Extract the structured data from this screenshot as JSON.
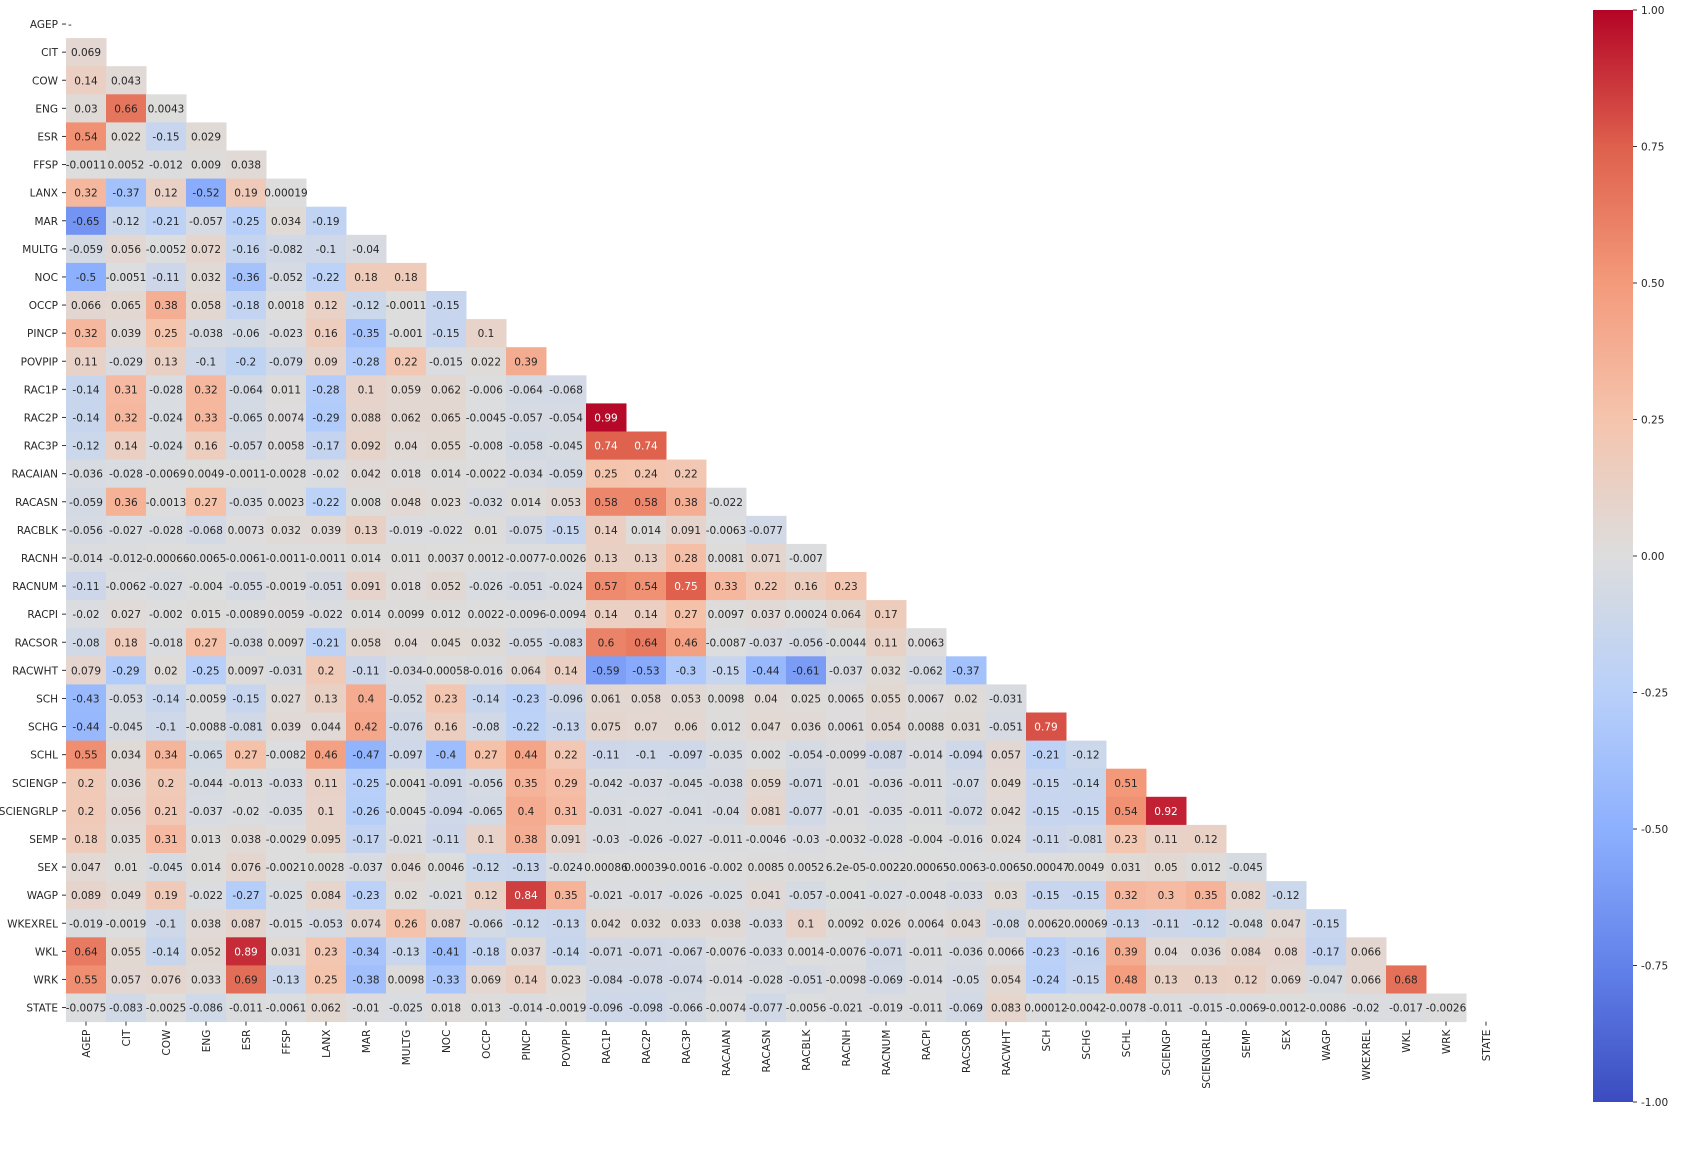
{
  "chart_data": {
    "type": "heatmap",
    "title": "",
    "xlabel": "",
    "ylabel": "",
    "colormap": "coolwarm",
    "mask": "upper-triangle",
    "vmin": -1.0,
    "vmax": 1.0,
    "colorbar_ticks": [
      "1.00",
      "0.75",
      "0.50",
      "0.25",
      "0.00",
      "-0.25",
      "-0.50",
      "-0.75",
      "-1.00"
    ],
    "colorbar_tick_values": [
      1.0,
      0.75,
      0.5,
      0.25,
      0.0,
      -0.25,
      -0.5,
      -0.75,
      -1.0
    ],
    "variables": [
      "AGEP",
      "CIT",
      "COW",
      "ENG",
      "ESR",
      "FFSP",
      "LANX",
      "MAR",
      "MULTG",
      "NOC",
      "OCCP",
      "PINCP",
      "POVPIP",
      "RAC1P",
      "RAC2P",
      "RAC3P",
      "RACAIAN",
      "RACASN",
      "RACBLK",
      "RACNH",
      "RACNUM",
      "RACPI",
      "RACSOR",
      "RACWHT",
      "SCH",
      "SCHG",
      "SCHL",
      "SCIENGP",
      "SCIENGRLP",
      "SEMP",
      "SEX",
      "WAGP",
      "WKEXREL",
      "WKL",
      "WRK",
      "STATE"
    ],
    "diagonal_label": "-",
    "rows": [
      [],
      [
        "0.069"
      ],
      [
        "0.14",
        "0.043"
      ],
      [
        "0.03",
        "0.66",
        "0.0043"
      ],
      [
        "0.54",
        "0.022",
        "-0.15",
        "0.029"
      ],
      [
        "-0.0011",
        "0.0052",
        "-0.012",
        "0.009",
        "0.038"
      ],
      [
        "0.32",
        "-0.37",
        "0.12",
        "-0.52",
        "0.19",
        "0.00019"
      ],
      [
        "-0.65",
        "-0.12",
        "-0.21",
        "-0.057",
        "-0.25",
        "0.034",
        "-0.19"
      ],
      [
        "-0.059",
        "0.056",
        "-0.0052",
        "0.072",
        "-0.16",
        "-0.082",
        "-0.1",
        "-0.04"
      ],
      [
        "-0.5",
        "-0.0051",
        "-0.11",
        "0.032",
        "-0.36",
        "-0.052",
        "-0.22",
        "0.18",
        "0.18"
      ],
      [
        "0.066",
        "0.065",
        "0.38",
        "0.058",
        "-0.18",
        "0.0018",
        "0.12",
        "-0.12",
        "-0.0011",
        "-0.15"
      ],
      [
        "0.32",
        "0.039",
        "0.25",
        "-0.038",
        "-0.06",
        "-0.023",
        "0.16",
        "-0.35",
        "-0.001",
        "-0.15",
        "0.1"
      ],
      [
        "0.11",
        "-0.029",
        "0.13",
        "-0.1",
        "-0.2",
        "-0.079",
        "0.09",
        "-0.28",
        "0.22",
        "-0.015",
        "0.022",
        "0.39"
      ],
      [
        "-0.14",
        "0.31",
        "-0.028",
        "0.32",
        "-0.064",
        "0.011",
        "-0.28",
        "0.1",
        "0.059",
        "0.062",
        "-0.006",
        "-0.064",
        "-0.068"
      ],
      [
        "-0.14",
        "0.32",
        "-0.024",
        "0.33",
        "-0.065",
        "0.0074",
        "-0.29",
        "0.088",
        "0.062",
        "0.065",
        "-0.0045",
        "-0.057",
        "-0.054",
        "0.99"
      ],
      [
        "-0.12",
        "0.14",
        "-0.024",
        "0.16",
        "-0.057",
        "0.0058",
        "-0.17",
        "0.092",
        "0.04",
        "0.055",
        "-0.008",
        "-0.058",
        "-0.045",
        "0.74",
        "0.74"
      ],
      [
        "-0.036",
        "-0.028",
        "-0.0069",
        "0.0049",
        "-0.0011",
        "-0.0028",
        "-0.02",
        "0.042",
        "0.018",
        "0.014",
        "-0.0022",
        "-0.034",
        "-0.059",
        "0.25",
        "0.24",
        "0.22"
      ],
      [
        "-0.059",
        "0.36",
        "-0.0013",
        "0.27",
        "-0.035",
        "0.0023",
        "-0.22",
        "0.008",
        "0.048",
        "0.023",
        "-0.032",
        "0.014",
        "0.053",
        "0.58",
        "0.58",
        "0.38",
        "-0.022"
      ],
      [
        "-0.056",
        "-0.027",
        "-0.028",
        "-0.068",
        "0.0073",
        "0.032",
        "0.039",
        "0.13",
        "-0.019",
        "-0.022",
        "0.01",
        "-0.075",
        "-0.15",
        "0.14",
        "0.014",
        "0.091",
        "-0.0063",
        "-0.077"
      ],
      [
        "-0.014",
        "-0.012",
        "-0.00066",
        "-0.0065",
        "-0.0061",
        "-0.0011",
        "-0.0011",
        "0.014",
        "0.011",
        "0.0037",
        "0.0012",
        "-0.0077",
        "-0.0026",
        "0.13",
        "0.13",
        "0.28",
        "0.0081",
        "0.071",
        "-0.007"
      ],
      [
        "-0.11",
        "-0.0062",
        "-0.027",
        "-0.004",
        "-0.055",
        "-0.0019",
        "-0.051",
        "0.091",
        "0.018",
        "0.052",
        "-0.026",
        "-0.051",
        "-0.024",
        "0.57",
        "0.54",
        "0.75",
        "0.33",
        "0.22",
        "0.16",
        "0.23"
      ],
      [
        "-0.02",
        "0.027",
        "-0.002",
        "0.015",
        "-0.0089",
        "0.0059",
        "-0.022",
        "0.014",
        "0.0099",
        "0.012",
        "0.0022",
        "-0.0096",
        "-0.0094",
        "0.14",
        "0.14",
        "0.27",
        "0.0097",
        "0.037",
        "0.00024",
        "0.064",
        "0.17"
      ],
      [
        "-0.08",
        "0.18",
        "-0.018",
        "0.27",
        "-0.038",
        "0.0097",
        "-0.21",
        "0.058",
        "0.04",
        "0.045",
        "0.032",
        "-0.055",
        "-0.083",
        "0.6",
        "0.64",
        "0.46",
        "-0.0087",
        "-0.037",
        "-0.056",
        "-0.0044",
        "0.11",
        "0.0063"
      ],
      [
        "0.079",
        "-0.29",
        "0.02",
        "-0.25",
        "0.0097",
        "-0.031",
        "0.2",
        "-0.11",
        "-0.034",
        "-0.00058",
        "-0.016",
        "0.064",
        "0.14",
        "-0.59",
        "-0.53",
        "-0.3",
        "-0.15",
        "-0.44",
        "-0.61",
        "-0.037",
        "0.032",
        "-0.062",
        "-0.37"
      ],
      [
        "-0.43",
        "-0.053",
        "-0.14",
        "-0.0059",
        "-0.15",
        "0.027",
        "0.13",
        "0.4",
        "-0.052",
        "0.23",
        "-0.14",
        "-0.23",
        "-0.096",
        "0.061",
        "0.058",
        "0.053",
        "0.0098",
        "0.04",
        "0.025",
        "0.0065",
        "0.055",
        "0.0067",
        "0.02",
        "-0.031"
      ],
      [
        "-0.44",
        "-0.045",
        "-0.1",
        "-0.0088",
        "-0.081",
        "0.039",
        "0.044",
        "0.42",
        "-0.076",
        "0.16",
        "-0.08",
        "-0.22",
        "-0.13",
        "0.075",
        "0.07",
        "0.06",
        "0.012",
        "0.047",
        "0.036",
        "0.0061",
        "0.054",
        "0.0088",
        "0.031",
        "-0.051",
        "0.79"
      ],
      [
        "0.55",
        "0.034",
        "0.34",
        "-0.065",
        "0.27",
        "-0.0082",
        "0.46",
        "-0.47",
        "-0.097",
        "-0.4",
        "0.27",
        "0.44",
        "0.22",
        "-0.11",
        "-0.1",
        "-0.097",
        "-0.035",
        "0.002",
        "-0.054",
        "-0.0099",
        "-0.087",
        "-0.014",
        "-0.094",
        "0.057",
        "-0.21",
        "-0.12"
      ],
      [
        "0.2",
        "0.036",
        "0.2",
        "-0.044",
        "-0.013",
        "-0.033",
        "0.11",
        "-0.25",
        "-0.0041",
        "-0.091",
        "-0.056",
        "0.35",
        "0.29",
        "-0.042",
        "-0.037",
        "-0.045",
        "-0.038",
        "0.059",
        "-0.071",
        "-0.01",
        "-0.036",
        "-0.011",
        "-0.07",
        "0.049",
        "-0.15",
        "-0.14",
        "0.51"
      ],
      [
        "0.2",
        "0.056",
        "0.21",
        "-0.037",
        "-0.02",
        "-0.035",
        "0.1",
        "-0.26",
        "-0.0045",
        "-0.094",
        "-0.065",
        "0.4",
        "0.31",
        "-0.031",
        "-0.027",
        "-0.041",
        "-0.04",
        "0.081",
        "-0.077",
        "-0.01",
        "-0.035",
        "-0.011",
        "-0.072",
        "0.042",
        "-0.15",
        "-0.15",
        "0.54",
        "0.92"
      ],
      [
        "0.18",
        "0.035",
        "0.31",
        "0.013",
        "0.038",
        "-0.0029",
        "0.095",
        "-0.17",
        "-0.021",
        "-0.11",
        "0.1",
        "0.38",
        "0.091",
        "-0.03",
        "-0.026",
        "-0.027",
        "-0.011",
        "-0.0046",
        "-0.03",
        "-0.0032",
        "-0.028",
        "-0.004",
        "-0.016",
        "0.024",
        "-0.11",
        "-0.081",
        "0.23",
        "0.11",
        "0.12"
      ],
      [
        "0.047",
        "0.01",
        "-0.045",
        "0.014",
        "0.076",
        "-0.0021",
        "0.0028",
        "-0.037",
        "0.046",
        "0.0046",
        "-0.12",
        "-0.13",
        "-0.024",
        "0.00086",
        "0.00039",
        "-0.0016",
        "-0.002",
        "0.0085",
        "0.0052",
        "6.2e-05",
        "-0.0022",
        "-0.00065",
        "-0.0063",
        "-0.0065",
        "-0.00047",
        "0.0049",
        "0.031",
        "0.05",
        "0.012",
        "-0.045"
      ],
      [
        "0.089",
        "0.049",
        "0.19",
        "-0.022",
        "-0.27",
        "-0.025",
        "0.084",
        "-0.23",
        "0.02",
        "-0.021",
        "0.12",
        "0.84",
        "0.35",
        "-0.021",
        "-0.017",
        "-0.026",
        "-0.025",
        "0.041",
        "-0.057",
        "-0.0041",
        "-0.027",
        "-0.0048",
        "-0.033",
        "0.03",
        "-0.15",
        "-0.15",
        "0.32",
        "0.3",
        "0.35",
        "0.082",
        "-0.12"
      ],
      [
        "-0.019",
        "-0.0019",
        "-0.1",
        "0.038",
        "0.087",
        "-0.015",
        "-0.053",
        "0.074",
        "0.26",
        "0.087",
        "-0.066",
        "-0.12",
        "-0.13",
        "0.042",
        "0.032",
        "0.033",
        "0.038",
        "-0.033",
        "0.1",
        "0.0092",
        "0.026",
        "0.0064",
        "0.043",
        "-0.08",
        "0.0062",
        "0.00069",
        "-0.13",
        "-0.11",
        "-0.12",
        "-0.048",
        "0.047",
        "-0.15"
      ],
      [
        "0.64",
        "0.055",
        "-0.14",
        "0.052",
        "0.89",
        "0.031",
        "0.23",
        "-0.34",
        "-0.13",
        "-0.41",
        "-0.18",
        "0.037",
        "-0.14",
        "-0.071",
        "-0.071",
        "-0.067",
        "-0.0076",
        "-0.033",
        "0.0014",
        "-0.0076",
        "-0.071",
        "-0.011",
        "-0.036",
        "0.0066",
        "-0.23",
        "-0.16",
        "0.39",
        "0.04",
        "0.036",
        "0.084",
        "0.08",
        "-0.17",
        "0.066"
      ],
      [
        "0.55",
        "0.057",
        "0.076",
        "0.033",
        "0.69",
        "-0.13",
        "0.25",
        "-0.38",
        "0.0098",
        "-0.33",
        "0.069",
        "0.14",
        "0.023",
        "-0.084",
        "-0.078",
        "-0.074",
        "-0.014",
        "-0.028",
        "-0.051",
        "-0.0098",
        "-0.069",
        "-0.014",
        "-0.05",
        "0.054",
        "-0.24",
        "-0.15",
        "0.48",
        "0.13",
        "0.13",
        "0.12",
        "0.069",
        "-0.047",
        "0.066",
        "0.68"
      ],
      [
        "-0.0075",
        "-0.083",
        "-0.0025",
        "-0.086",
        "-0.011",
        "-0.0061",
        "0.062",
        "-0.01",
        "-0.025",
        "0.018",
        "0.013",
        "-0.014",
        "-0.0019",
        "-0.096",
        "-0.098",
        "-0.066",
        "-0.0074",
        "-0.077",
        "-0.0056",
        "-0.021",
        "-0.019",
        "-0.011",
        "-0.069",
        "0.083",
        "0.00012",
        "-0.0042",
        "-0.0078",
        "-0.011",
        "-0.015",
        "-0.0069",
        "-0.0012",
        "-0.0086",
        "-0.02",
        "-0.017",
        "-0.0026"
      ]
    ]
  }
}
